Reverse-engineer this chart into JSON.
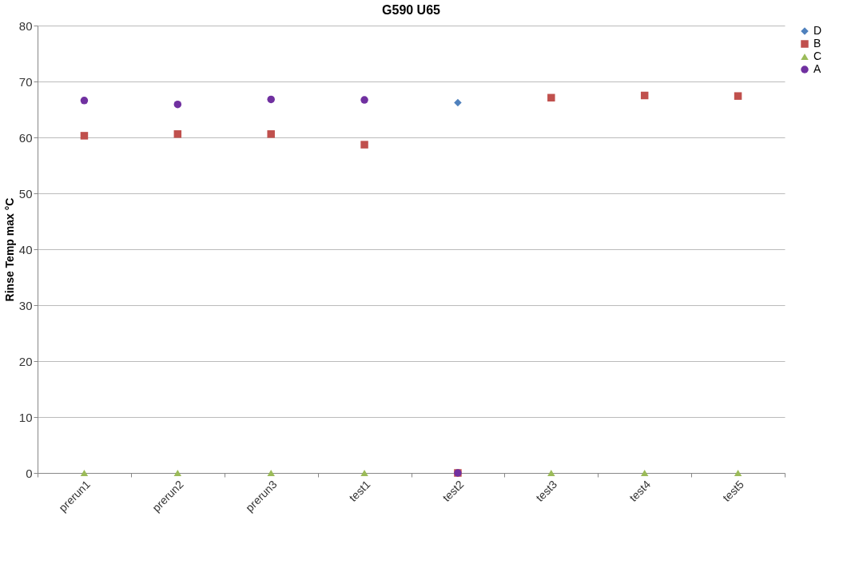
{
  "chart_data": {
    "type": "scatter",
    "title": "G590 U65",
    "ylabel": "Rinse Temp max °C",
    "categories": [
      "prerun1",
      "prerun2",
      "prerun3",
      "test1",
      "test2",
      "test3",
      "test4",
      "test5"
    ],
    "series": [
      {
        "name": "D",
        "color": "#4f81bd",
        "marker": "diamond",
        "values": [
          null,
          null,
          null,
          null,
          66.2,
          null,
          null,
          null
        ]
      },
      {
        "name": "B",
        "color": "#c0504d",
        "marker": "square",
        "values": [
          60.3,
          60.6,
          60.6,
          58.7,
          0,
          67.1,
          67.5,
          67.4
        ]
      },
      {
        "name": "C",
        "color": "#9bbb59",
        "marker": "triangle",
        "values": [
          0,
          0,
          0,
          0,
          null,
          0,
          0,
          0
        ]
      },
      {
        "name": "A",
        "color": "#7030a0",
        "marker": "circle",
        "values": [
          66.6,
          65.9,
          66.8,
          66.7,
          0,
          null,
          null,
          null
        ]
      }
    ],
    "ylim": [
      0,
      80
    ],
    "yticks": [
      0,
      10,
      20,
      30,
      40,
      50,
      60,
      70,
      80
    ],
    "grid": "y",
    "legend": "right"
  }
}
